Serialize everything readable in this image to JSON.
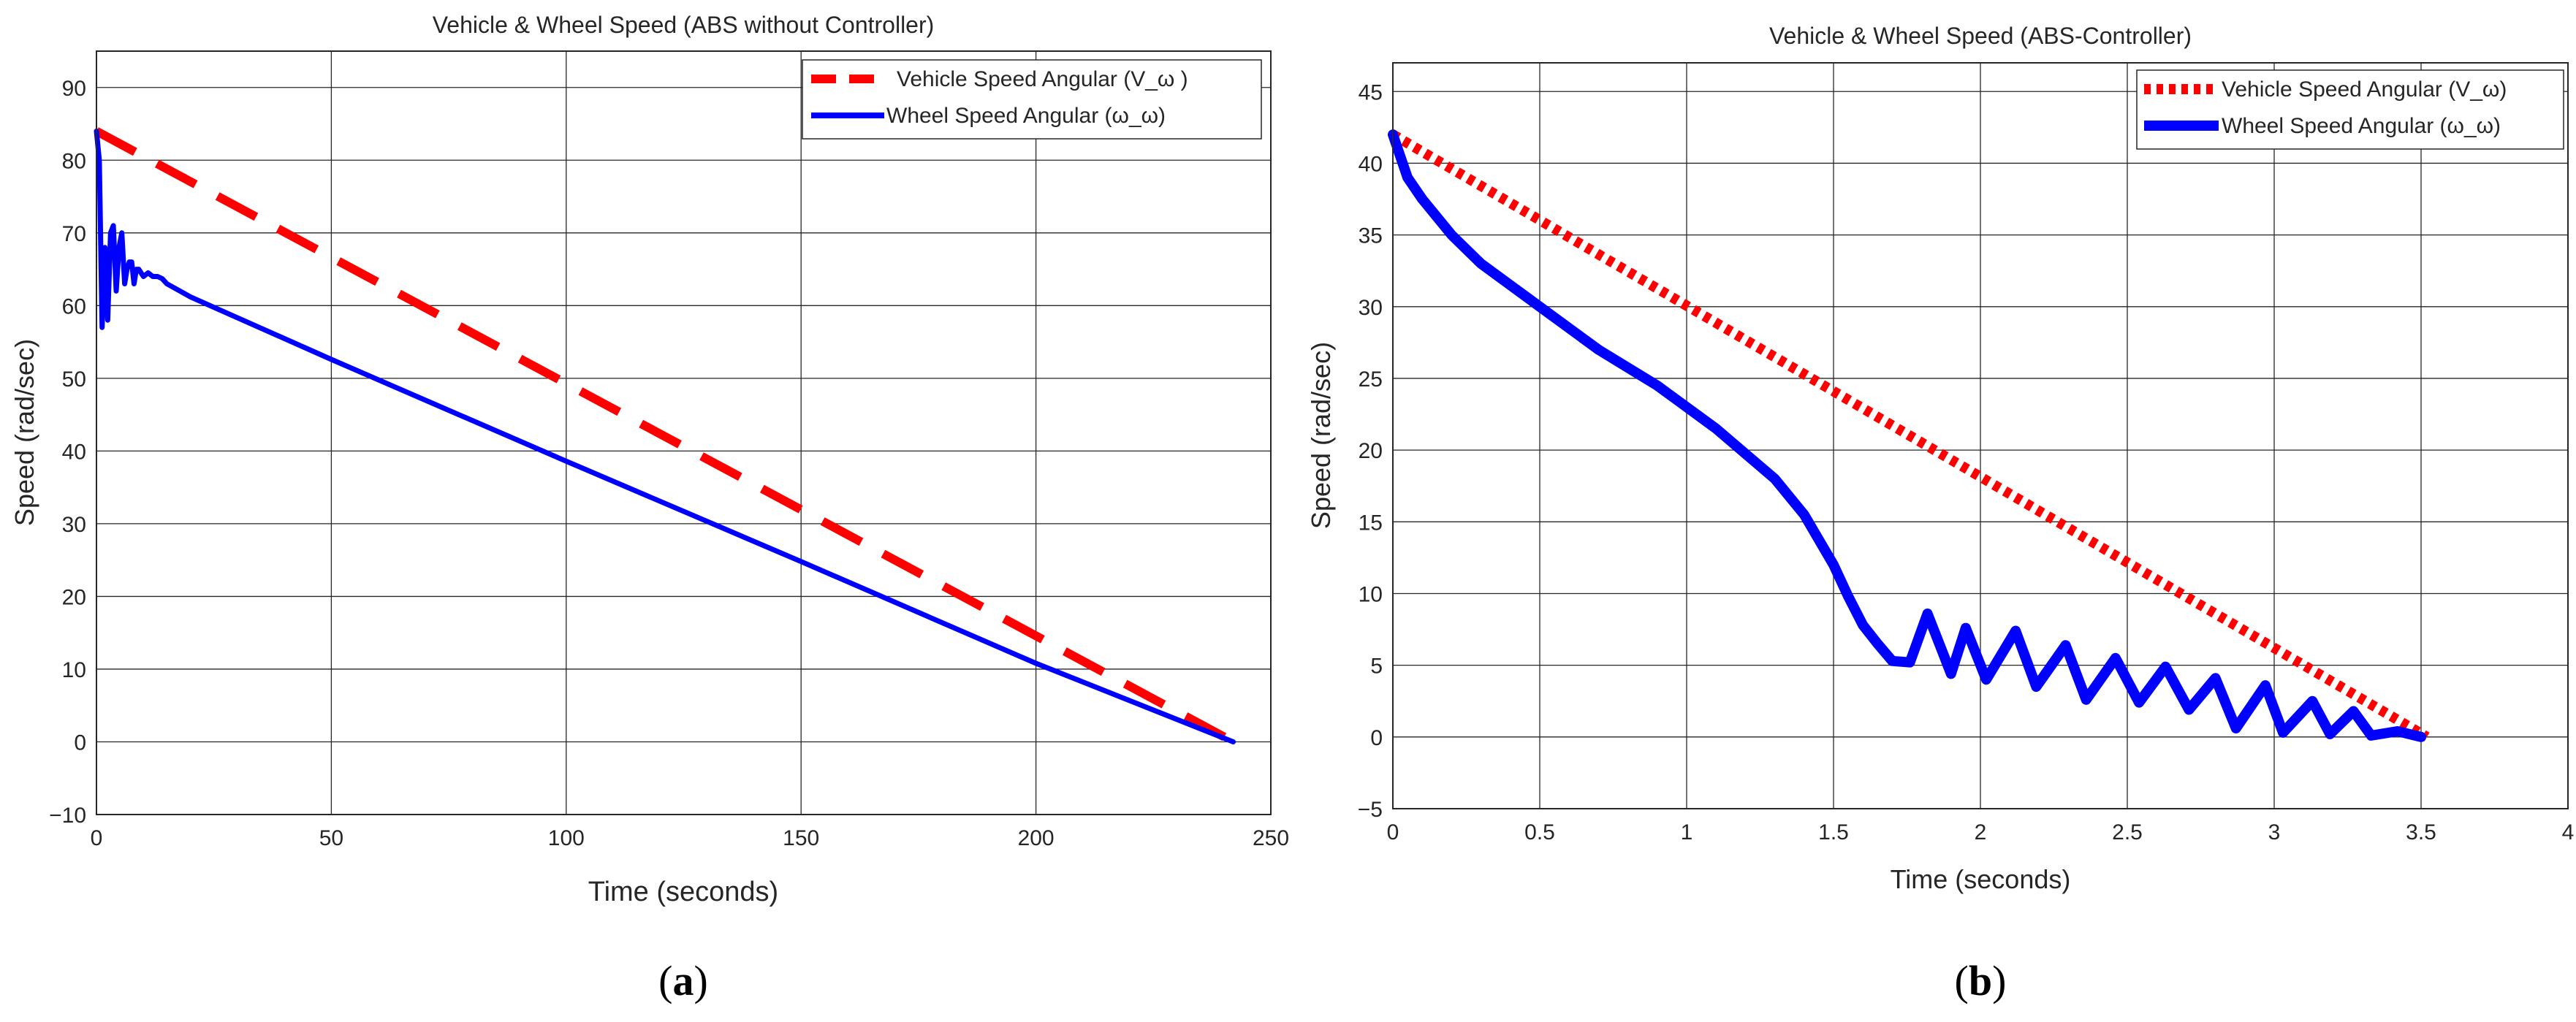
{
  "captions": {
    "a": "(a)",
    "b": "(b)",
    "a_letter": "a",
    "b_letter": "b"
  },
  "chart_data": [
    {
      "type": "line",
      "title": "Vehicle & Wheel Speed (ABS without Controller)",
      "xlabel": "Time (seconds)",
      "ylabel": "Speed (rad/sec)",
      "xlim": [
        0,
        250
      ],
      "ylim": [
        -10,
        95
      ],
      "xticks": [
        0,
        50,
        100,
        150,
        200,
        250
      ],
      "yticks": [
        -10,
        0,
        10,
        20,
        30,
        40,
        50,
        60,
        70,
        80,
        90
      ],
      "grid": true,
      "legend_position": "top-right",
      "series": [
        {
          "name": "Vehicle Speed Angular (V_ω )",
          "color": "#ff0000",
          "style": "dashed",
          "x": [
            0,
            242
          ],
          "y": [
            84,
            0
          ]
        },
        {
          "name": "Wheel Speed Angular (ω_ω)",
          "color": "#0000ff",
          "style": "solid",
          "x": [
            0,
            0.6,
            1.2,
            1.8,
            2.4,
            3,
            3.6,
            4.2,
            4.8,
            5.4,
            6,
            6.5,
            7,
            7.5,
            8,
            8.5,
            9,
            10,
            11,
            12,
            13,
            14,
            15,
            20,
            50,
            100,
            150,
            200,
            242
          ],
          "y": [
            84,
            80,
            57,
            68,
            58,
            70,
            71,
            62,
            68,
            70,
            63,
            65,
            66,
            66,
            63,
            65,
            65,
            64,
            64.5,
            64,
            64,
            63.7,
            63,
            61.2,
            52.6,
            38.6,
            24.8,
            10.8,
            0
          ]
        }
      ]
    },
    {
      "type": "line",
      "title": "Vehicle & Wheel Speed (ABS-Controller)",
      "xlabel": "Time (seconds)",
      "ylabel": "Speed (rad/sec)",
      "xlim": [
        0,
        4
      ],
      "ylim": [
        -5,
        47
      ],
      "xticks": [
        0,
        0.5,
        1,
        1.5,
        2,
        2.5,
        3,
        3.5,
        4
      ],
      "yticks": [
        -5,
        0,
        5,
        10,
        15,
        20,
        25,
        30,
        35,
        40,
        45
      ],
      "grid": true,
      "legend_position": "top-right",
      "series": [
        {
          "name": "Vehicle Speed Angular (V_ω)",
          "color": "#ff0000",
          "style": "dotted",
          "x": [
            0,
            3.52
          ],
          "y": [
            42,
            0
          ]
        },
        {
          "name": "Wheel Speed Angular (ω_ω)",
          "color": "#0000ff",
          "style": "solid",
          "x": [
            0,
            0.05,
            0.1,
            0.2,
            0.3,
            0.5,
            0.7,
            0.9,
            1.1,
            1.3,
            1.4,
            1.5,
            1.55,
            1.6,
            1.65,
            1.7,
            1.76,
            1.82,
            1.9,
            1.95,
            2.02,
            2.12,
            2.19,
            2.29,
            2.36,
            2.46,
            2.54,
            2.63,
            2.71,
            2.8,
            2.87,
            2.97,
            3.03,
            3.13,
            3.19,
            3.27,
            3.33,
            3.42,
            3.5
          ],
          "y": [
            42,
            39,
            37.5,
            35,
            33,
            30,
            27,
            24.5,
            21.5,
            18,
            15.5,
            12,
            9.8,
            7.8,
            6.5,
            5.3,
            5.2,
            8.6,
            4.4,
            7.6,
            4,
            7.4,
            3.5,
            6.4,
            2.6,
            5.5,
            2.4,
            4.9,
            1.9,
            4.1,
            0.6,
            3.6,
            0.3,
            2.5,
            0.2,
            1.8,
            0.1,
            0.4,
            0
          ]
        }
      ]
    }
  ]
}
